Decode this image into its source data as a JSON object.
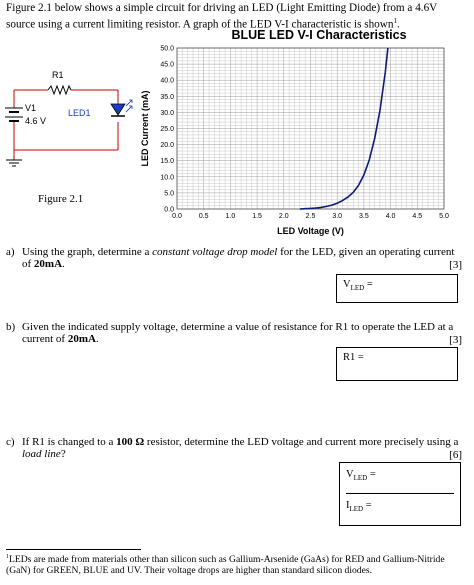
{
  "intro": {
    "text_before": "Figure 2.1 below shows a simple circuit for driving an LED (Light Emitting Diode) from a 4.6V source using a current limiting resistor.   A graph of the LED V-I characteristic is shown",
    "footnote_marker": "1",
    "text_after": "."
  },
  "circuit": {
    "resistor_label": "R1",
    "source_label": "V1",
    "source_value": "4.6 V",
    "led_label": "LED1",
    "caption": "Figure 2.1"
  },
  "chart_data": {
    "type": "line",
    "title": "BLUE  LED V-I Characteristics",
    "xlabel": "LED Voltage (V)",
    "ylabel": "LED Current (mA)",
    "xlim": [
      0,
      5
    ],
    "ylim": [
      0,
      50
    ],
    "x_ticks": [
      "0.0",
      "0.5",
      "1.0",
      "1.5",
      "2.0",
      "2.5",
      "3.0",
      "3.5",
      "4.0",
      "4.5",
      "5.0"
    ],
    "y_ticks": [
      "0.0",
      "5.0",
      "10.0",
      "15.0",
      "20.0",
      "25.0",
      "30.0",
      "35.0",
      "40.0",
      "45.0",
      "50.0"
    ],
    "grid": true,
    "series": [
      {
        "color": "#0d1a7a",
        "x": [
          2.3,
          2.4,
          2.5,
          2.6,
          2.7,
          2.8,
          2.9,
          3.0,
          3.1,
          3.2,
          3.3,
          3.4,
          3.5,
          3.6,
          3.7,
          3.8,
          3.9,
          3.95
        ],
        "y": [
          0.0,
          0.1,
          0.2,
          0.3,
          0.5,
          0.8,
          1.2,
          1.8,
          2.6,
          3.7,
          5.2,
          7.4,
          10.6,
          15.2,
          21.8,
          30.5,
          42.5,
          50.0
        ]
      }
    ]
  },
  "questions": [
    {
      "label": "a)",
      "text_parts": [
        "Using the graph, determine a ",
        "constant voltage drop model",
        " for the LED, given an operating current of ",
        "20mA",
        "."
      ],
      "marks": "[3]",
      "answers": [
        {
          "main": "V",
          "sub": "LED",
          "suffix": " ="
        }
      ]
    },
    {
      "label": "b)",
      "text_parts": [
        "Given the indicated supply voltage, determine a value of resistance for R1 to operate the LED at a current of ",
        "20mA",
        "."
      ],
      "marks": "[3]",
      "answers": [
        {
          "main": "R1",
          "sub": "",
          "suffix": " ="
        }
      ]
    },
    {
      "label": "c)",
      "text_parts": [
        "If R1 is changed to a ",
        "100 Ω",
        " resistor, determine the LED voltage and current more precisely using a ",
        "load line",
        "?"
      ],
      "marks": "[6]",
      "answers": [
        {
          "main": "V",
          "sub": "LED",
          "suffix": " ="
        },
        {
          "main": "I",
          "sub": "LED",
          "suffix": " ="
        }
      ]
    }
  ],
  "footnote": {
    "marker": "1",
    "text": "LEDs are made from materials other than silicon such as Gallium-Arsenide (GaAs) for RED and Gallium-Nitride (GaN) for GREEN, BLUE and UV.  Their voltage drops are higher than standard silicon diodes."
  }
}
